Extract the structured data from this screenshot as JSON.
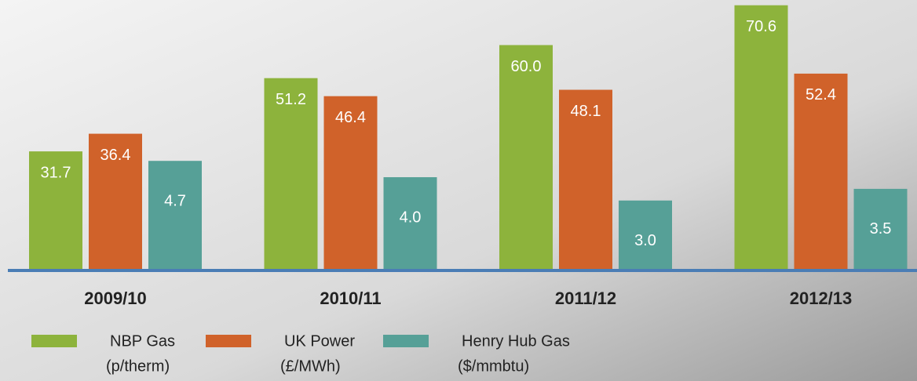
{
  "chart_data": {
    "type": "bar",
    "categories": [
      "2009/10",
      "2010/11",
      "2011/12",
      "2012/13"
    ],
    "series": [
      {
        "name": "NBP Gas",
        "unit": "(p/therm)",
        "color": "#8db33c",
        "values": [
          31.7,
          51.2,
          60.0,
          70.6
        ],
        "value_labels": [
          "31.7",
          "51.2",
          "60.0",
          "70.6"
        ]
      },
      {
        "name": "UK Power",
        "unit": "(£/MWh)",
        "color": "#d0622a",
        "values": [
          36.4,
          46.4,
          48.1,
          52.4
        ],
        "value_labels": [
          "36.4",
          "46.4",
          "48.1",
          "52.4"
        ]
      },
      {
        "name": "Henry Hub Gas",
        "unit": "($/mmbtu)",
        "color": "#56a097",
        "axis": "y2",
        "values": [
          4.7,
          4.0,
          3.0,
          3.5
        ],
        "value_labels": [
          "4.7",
          "4.0",
          "3.0",
          "3.5"
        ]
      }
    ],
    "ylim": [
      0,
      72
    ],
    "y2lim": [
      0,
      11.6
    ],
    "axis_color": "#4a7db5"
  }
}
